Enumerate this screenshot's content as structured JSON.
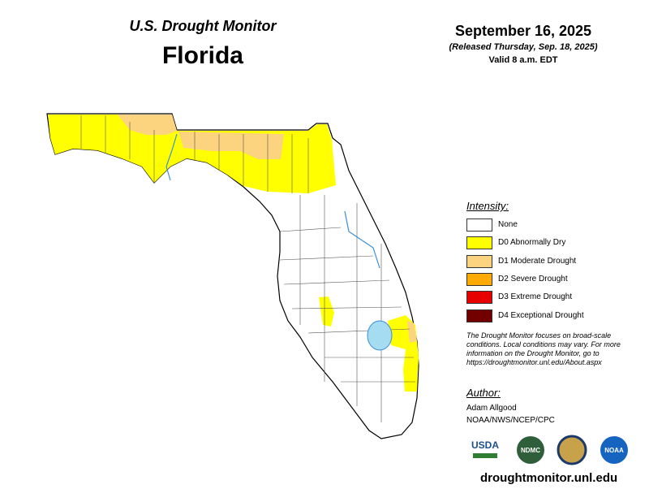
{
  "header": {
    "title": "U.S. Drought Monitor",
    "state": "Florida",
    "date": "September 16, 2025",
    "released": "(Released Thursday, Sep. 18, 2025)",
    "valid": "Valid 8 a.m. EDT"
  },
  "legend": {
    "title": "Intensity:",
    "items": [
      {
        "label": "None",
        "color": "#ffffff"
      },
      {
        "label": "D0 Abnormally Dry",
        "color": "#ffff00"
      },
      {
        "label": "D1 Moderate Drought",
        "color": "#fcd37f"
      },
      {
        "label": "D2 Severe Drought",
        "color": "#ffaa00"
      },
      {
        "label": "D3 Extreme Drought",
        "color": "#e60000"
      },
      {
        "label": "D4 Exceptional Drought",
        "color": "#730000"
      }
    ]
  },
  "note": [
    "The Drought Monitor focuses on broad-scale",
    "conditions. Local conditions may vary. For more",
    "information on the Drought Monitor, go to",
    "https://droughtmonitor.unl.edu/About.aspx"
  ],
  "author": {
    "title": "Author:",
    "name": "Adam Allgood",
    "org": "NOAA/NWS/NCEP/CPC"
  },
  "logos": [
    "USDA",
    "NDMC",
    "NOAA"
  ],
  "footer": "droughtmonitor.unl.edu"
}
